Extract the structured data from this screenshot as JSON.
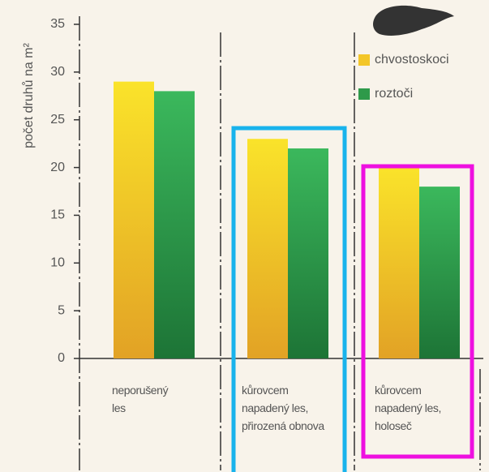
{
  "chart_data": {
    "type": "bar",
    "y_label": "počet druhů na m²",
    "categories": [
      "neporušený les",
      "kůrovcem napadený les, přirozená obnova",
      "kůrovcem napadený les, holoseč"
    ],
    "series": [
      {
        "name": "chvostoskoci",
        "color": "#f3c628",
        "values": [
          29,
          23,
          20
        ]
      },
      {
        "name": "roztoči",
        "color": "#2e9a4a",
        "values": [
          28,
          22,
          18
        ]
      }
    ],
    "ylim": [
      0,
      35
    ],
    "yticks": [
      0,
      5,
      10,
      15,
      20,
      25,
      30,
      35
    ]
  }
}
